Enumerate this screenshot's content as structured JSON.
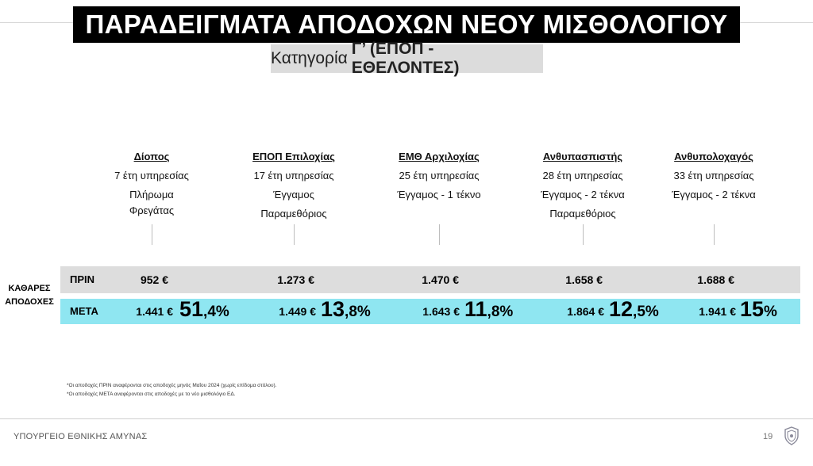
{
  "header": {
    "title": "ΠΑΡΑΔΕΙΓΜΑΤΑ ΑΠΟΔΟΧΩΝ ΝΕΟΥ ΜΙΣΘΟΛΟΓΙΟΥ",
    "subtitle_prefix": "Κατηγορία",
    "subtitle_bold": "Γ’ (ΕΠΟΠ - ΕΘΕΛΟΝΤΕΣ)"
  },
  "examples": [
    {
      "rank": "Δίοπος",
      "years": "7 έτη υπηρεσίας",
      "line3": "Πλήρωμα",
      "line4": "Φρεγάτας",
      "before": "952 €",
      "after": "1.441 €",
      "pct_int": "51",
      "pct_dec": ",4%"
    },
    {
      "rank": "ΕΠΟΠ Επιλοχίας",
      "years": "17 έτη υπηρεσίας",
      "line3": "Έγγαμος",
      "line4": "Παραμεθόριος",
      "before": "1.273 €",
      "after": "1.449 €",
      "pct_int": "13",
      "pct_dec": ",8%"
    },
    {
      "rank": "ΕΜΘ Αρχιλοχίας",
      "years": "25 έτη υπηρεσίας",
      "line3": "Έγγαμος - 1 τέκνο",
      "line4": "",
      "before": "1.470 €",
      "after": "1.643 €",
      "pct_int": "11",
      "pct_dec": ",8%"
    },
    {
      "rank": "Ανθυπασπιστής",
      "years": "28 έτη υπηρεσίας",
      "line3": "Έγγαμος - 2 τέκνα",
      "line4": "Παραμεθόριος",
      "before": "1.658 €",
      "after": "1.864 €",
      "pct_int": "12",
      "pct_dec": ",5%"
    },
    {
      "rank": "Ανθυπολοχαγός",
      "years": "33 έτη υπηρεσίας",
      "line3": "Έγγαμος - 2 τέκνα",
      "line4": "",
      "before": "1.688 €",
      "after": "1.941 €",
      "pct_int": "15",
      "pct_dec": "%"
    }
  ],
  "table": {
    "side_label_line1": "ΚΑΘΑΡΕΣ",
    "side_label_line2": "ΑΠΟΔΟΧΕΣ",
    "before_label": "ΠΡΙΝ",
    "after_label": "ΜΕΤΑ"
  },
  "footnotes": [
    "*Οι αποδοχές ΠΡΙΝ αναφέρονται στις αποδοχές μηνός Μαΐου 2024 (χωρίς επίδομα στόλου).",
    "*Οι αποδοχές ΜΕΤΑ αναφέρονται στις αποδοχές με το νέο μισθολόγιο ΕΔ."
  ],
  "footer": {
    "ministry": "ΥΠΟΥΡΓΕΙΟ ΕΘΝΙΚΗΣ ΑΜΥΝΑΣ",
    "page_number": "19"
  },
  "colors": {
    "title_bg": "#000000",
    "subtitle_bg": "#dcdcdc",
    "before_row": "#dddddd",
    "after_row": "#8fe6f1"
  }
}
